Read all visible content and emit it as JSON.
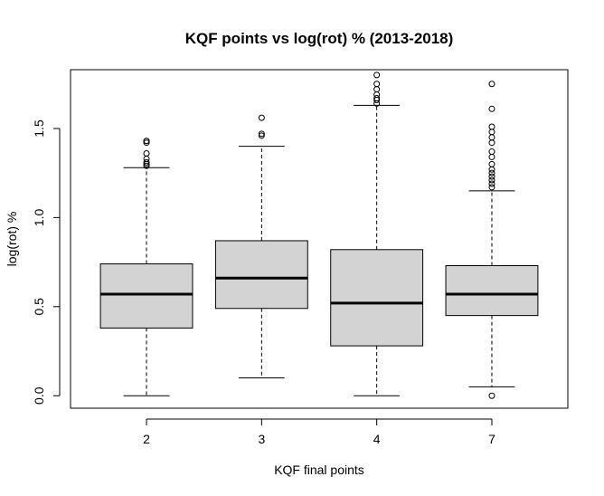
{
  "chart_data": {
    "type": "boxplot",
    "title": "KQF points vs log(rot) % (2013-2018)",
    "xlabel": "KQF final points",
    "ylabel": "log(rot) %",
    "categories": [
      "2",
      "3",
      "4",
      "7"
    ],
    "yticks": [
      "0.0",
      "0.5",
      "1.0",
      "1.5"
    ],
    "ylim": [
      -0.07,
      1.83
    ],
    "box_fill": "#d3d3d3",
    "grid": false,
    "legend": "none",
    "boxes": [
      {
        "category": "2",
        "whisker_low": 0.0,
        "q1": 0.38,
        "median": 0.57,
        "q3": 0.74,
        "whisker_high": 1.28,
        "outliers": [
          1.29,
          1.3,
          1.31,
          1.33,
          1.36,
          1.42,
          1.43,
          1.43
        ]
      },
      {
        "category": "3",
        "whisker_low": 0.1,
        "q1": 0.49,
        "median": 0.66,
        "q3": 0.87,
        "whisker_high": 1.4,
        "outliers": [
          1.46,
          1.47,
          1.56
        ]
      },
      {
        "category": "4",
        "whisker_low": 0.0,
        "q1": 0.28,
        "median": 0.52,
        "q3": 0.82,
        "whisker_high": 1.63,
        "outliers": [
          1.64,
          1.66,
          1.67,
          1.69,
          1.72,
          1.75,
          1.8
        ]
      },
      {
        "category": "7",
        "whisker_low": 0.05,
        "q1": 0.45,
        "median": 0.57,
        "q3": 0.73,
        "whisker_high": 1.15,
        "outliers": [
          0.0,
          1.17,
          1.19,
          1.21,
          1.23,
          1.25,
          1.27,
          1.3,
          1.34,
          1.37,
          1.42,
          1.45,
          1.48,
          1.51,
          1.61,
          1.75
        ]
      }
    ]
  }
}
